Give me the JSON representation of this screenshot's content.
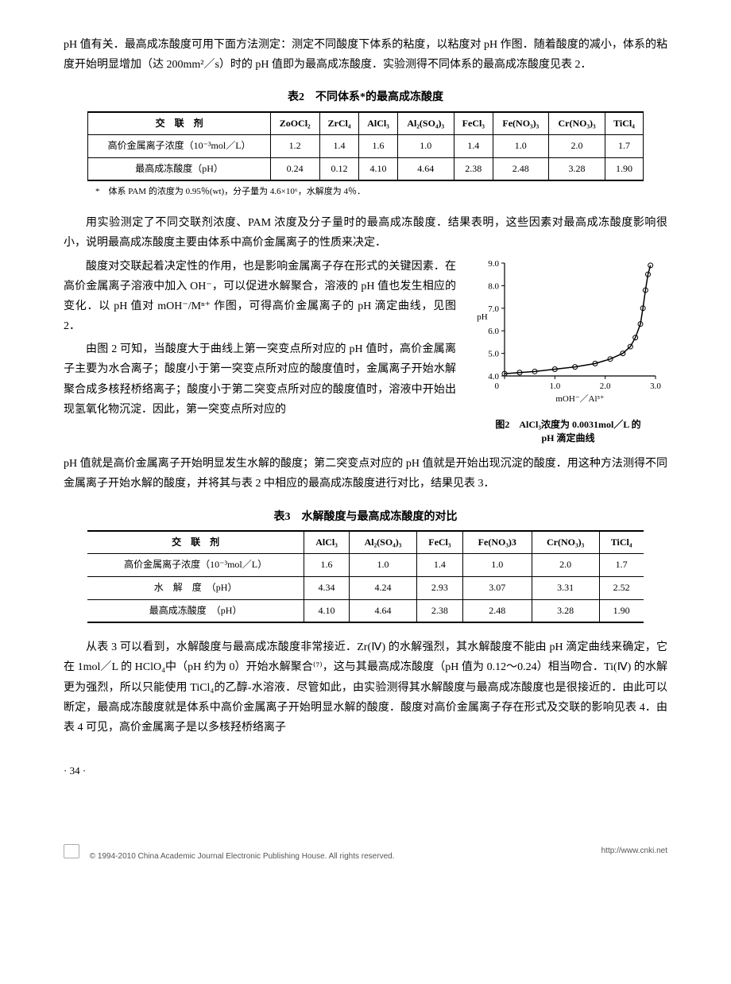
{
  "intro_para": "pH 值有关．最高成冻酸度可用下面方法测定：测定不同酸度下体系的粘度，以粘度对 pH 作图．随着酸度的减小，体系的粘度开始明显增加（达 200mm²／s）时的 pH 值即为最高成冻酸度．实验测得不同体系的最高成冻酸度见表 2．",
  "table2": {
    "title": "表2　不同体系*的最高成冻酸度",
    "header": [
      "交　联　剂",
      "ZoOCl₂",
      "ZrCl₄",
      "AlCl₃",
      "Al₂(SO₄)₃",
      "FeCl₃",
      "Fe(NO₃)₃",
      "Cr(NO₃)₃",
      "TiCl₄"
    ],
    "rows": [
      [
        "高价金属离子浓度（10⁻³mol／L）",
        "1.2",
        "1.4",
        "1.6",
        "1.0",
        "1.4",
        "1.0",
        "2.0",
        "1.7"
      ],
      [
        "最高成冻酸度（pH）",
        "0.24",
        "0.12",
        "4.10",
        "4.64",
        "2.38",
        "2.48",
        "3.28",
        "1.90"
      ]
    ],
    "footnote": "*　体系 PAM 的浓度为 0.95％(wt)，分子量为 4.6×10⁶，水解度为 4％．",
    "col_widths": [
      "180",
      "54",
      "50",
      "50",
      "64",
      "50",
      "64",
      "64",
      "50"
    ],
    "border_color": "#000000",
    "font_size": 12
  },
  "para_after_t2_1": "用实验测定了不同交联剂浓度、PAM 浓度及分子量时的最高成冻酸度．结果表明，这些因素对最高成冻酸度影响很小，说明最高成冻酸度主要由体系中高价金属离子的性质来决定．",
  "para_after_t2_2": "酸度对交联起着决定性的作用，也是影响金属离子存在形式的关键因素．在高价金属离子溶液中加入 OH⁻，可以促进水解聚合，溶液的 pH 值也发生相应的变化．以 pH 值对 mOH⁻/Mⁿ⁺ 作图，可得高价金属离子的 pH 滴定曲线，见图 2．",
  "para_after_t2_3": "由图 2 可知，当酸度大于曲线上第一突变点所对应的 pH 值时，高价金属离子主要为水合离子；酸度小于第一突变点所对应的酸度值时，金属离子开始水解聚合成多核羟桥络离子；酸度小于第二突变点所对应的酸度值时，溶液中开始出现氢氧化物沉淀．因此，第一突变点所对应的",
  "para_after_fig": "pH 值就是高价金属离子开始明显发生水解的酸度；第二突变点对应的 pH 值就是开始出现沉淀的酸度．用这种方法测得不同金属离子开始水解的酸度，并将其与表 2 中相应的最高成冻酸度进行对比，结果见表 3．",
  "figure2": {
    "caption_line1": "图2　AlCl₃浓度为 0.0031mol／L 的",
    "caption_line2": "pH 滴定曲线",
    "xlabel": "mOH⁻／Al³⁺",
    "ylabel": "pH",
    "xlim": [
      0,
      3.0
    ],
    "ylim": [
      4.0,
      9.0
    ],
    "xticks": [
      0,
      1.0,
      2.0,
      3.0
    ],
    "yticks": [
      4.0,
      5.0,
      6.0,
      7.0,
      8.0,
      9.0
    ],
    "points_x": [
      0.0,
      0.3,
      0.6,
      1.0,
      1.4,
      1.8,
      2.1,
      2.35,
      2.5,
      2.6,
      2.7,
      2.75,
      2.8,
      2.85,
      2.9
    ],
    "points_y": [
      4.1,
      4.15,
      4.2,
      4.3,
      4.4,
      4.55,
      4.75,
      5.0,
      5.3,
      5.7,
      6.3,
      7.0,
      7.8,
      8.5,
      8.9
    ],
    "line_color": "#000000",
    "marker": "circle",
    "marker_size": 3,
    "background_color": "#ffffff",
    "font_size": 11
  },
  "table3": {
    "title": "表3　水解酸度与最高成冻酸度的对比",
    "header": [
      "交　联　剂",
      "AlCl₃",
      "Al₂(SO₄)₃",
      "FeCl₃",
      "Fe(NO₃)3",
      "Cr(NO₃)₃",
      "TiCl₄"
    ],
    "rows": [
      [
        "高价金属离子浓度（10⁻³mol／L）",
        "1.6",
        "1.0",
        "1.4",
        "1.0",
        "2.0",
        "1.7"
      ],
      [
        "水　解　度　（pH）",
        "4.34",
        "4.24",
        "2.93",
        "3.07",
        "3.31",
        "2.52"
      ],
      [
        "最高成冻酸度　（pH）",
        "4.10",
        "4.64",
        "2.38",
        "2.48",
        "3.28",
        "1.90"
      ]
    ],
    "col_widths": [
      "200",
      "70",
      "80",
      "70",
      "80",
      "80",
      "70"
    ],
    "border_color": "#000000",
    "font_size": 12
  },
  "para_after_t3": "从表 3 可以看到，水解酸度与最高成冻酸度非常接近．Zr(Ⅳ) 的水解强烈，其水解酸度不能由 pH 滴定曲线来确定，它在 1mol／L 的 HClO₄中（pH 约为 0）开始水解聚合⁽⁷⁾，这与其最高成冻酸度（pH 值为 0.12～0.24）相当吻合．Ti(Ⅳ) 的水解更为强烈，所以只能使用 TiCl₄的乙醇-水溶液．尽管如此，由实验测得其水解酸度与最高成冻酸度也是很接近的．由此可以断定，最高成冻酸度就是体系中高价金属离子开始明显水解的酸度．酸度对高价金属离子存在形式及交联的影响见表 4．由表 4 可见，高价金属离子是以多核羟桥络离子",
  "page_number": "· 34 ·",
  "footer_text": "© 1994-2010 China Academic Journal Electronic Publishing House. All rights reserved.",
  "footer_url": "http://www.cnki.net"
}
